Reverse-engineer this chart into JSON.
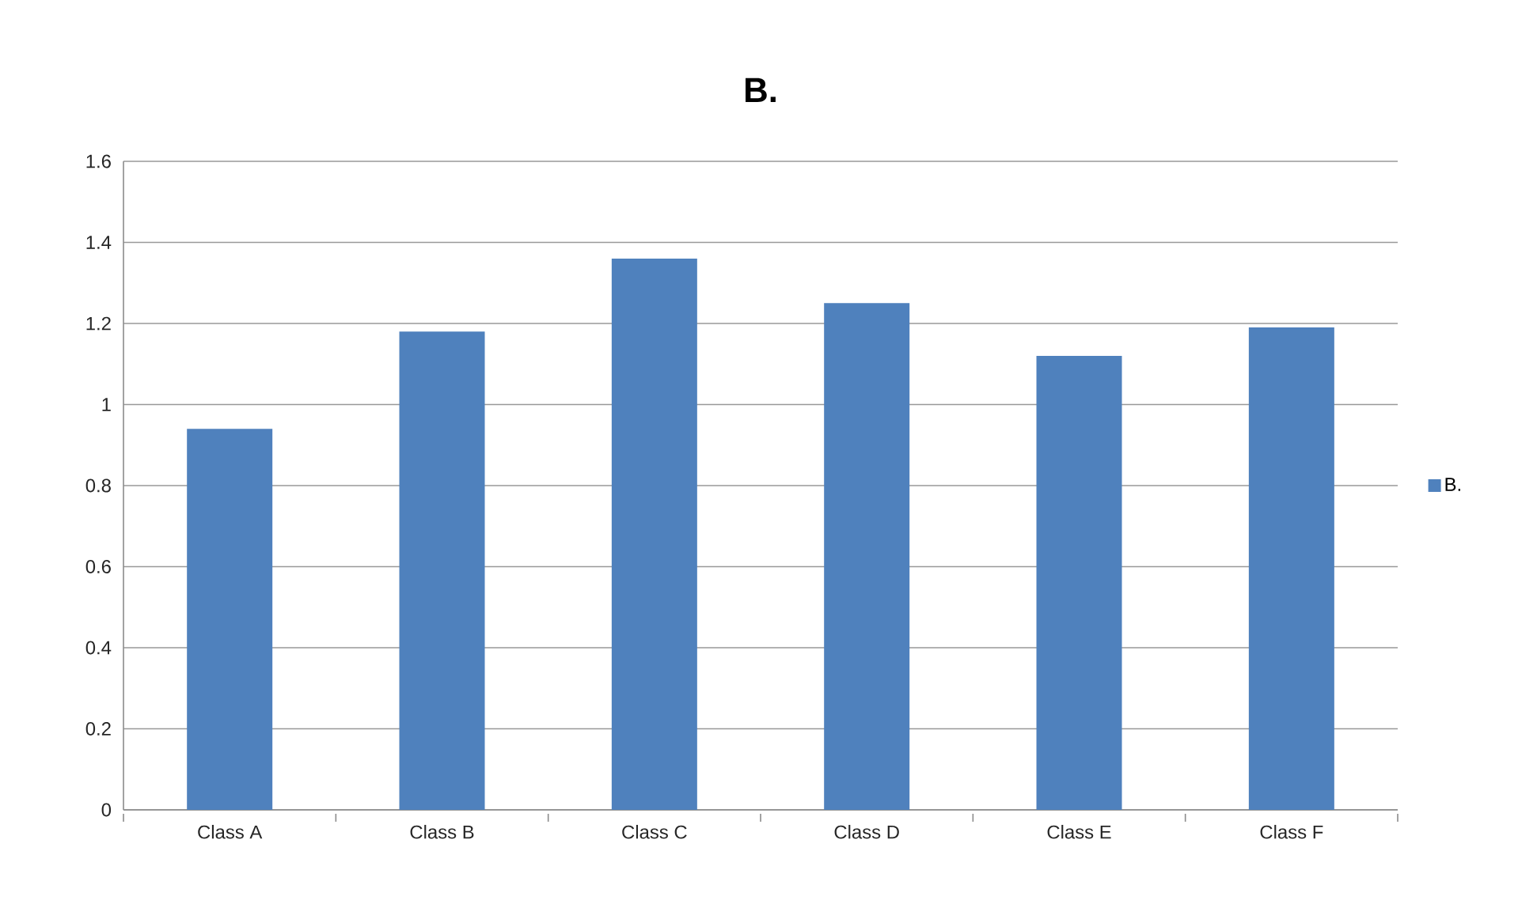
{
  "chart_data": {
    "type": "bar",
    "title": "B.",
    "categories": [
      "Class  A",
      "Class  B",
      "Class  C",
      "Class  D",
      "Class  E",
      "Class  F"
    ],
    "series": [
      {
        "name": "B.",
        "color": "#4f81bd",
        "values": [
          0.94,
          1.18,
          1.36,
          1.25,
          1.12,
          1.19
        ]
      }
    ],
    "ylim": [
      0,
      1.6
    ],
    "yticks": [
      0,
      0.2,
      0.4,
      0.6,
      0.8,
      1,
      1.2,
      1.4,
      1.6
    ],
    "grid": "y",
    "legend": "right"
  }
}
